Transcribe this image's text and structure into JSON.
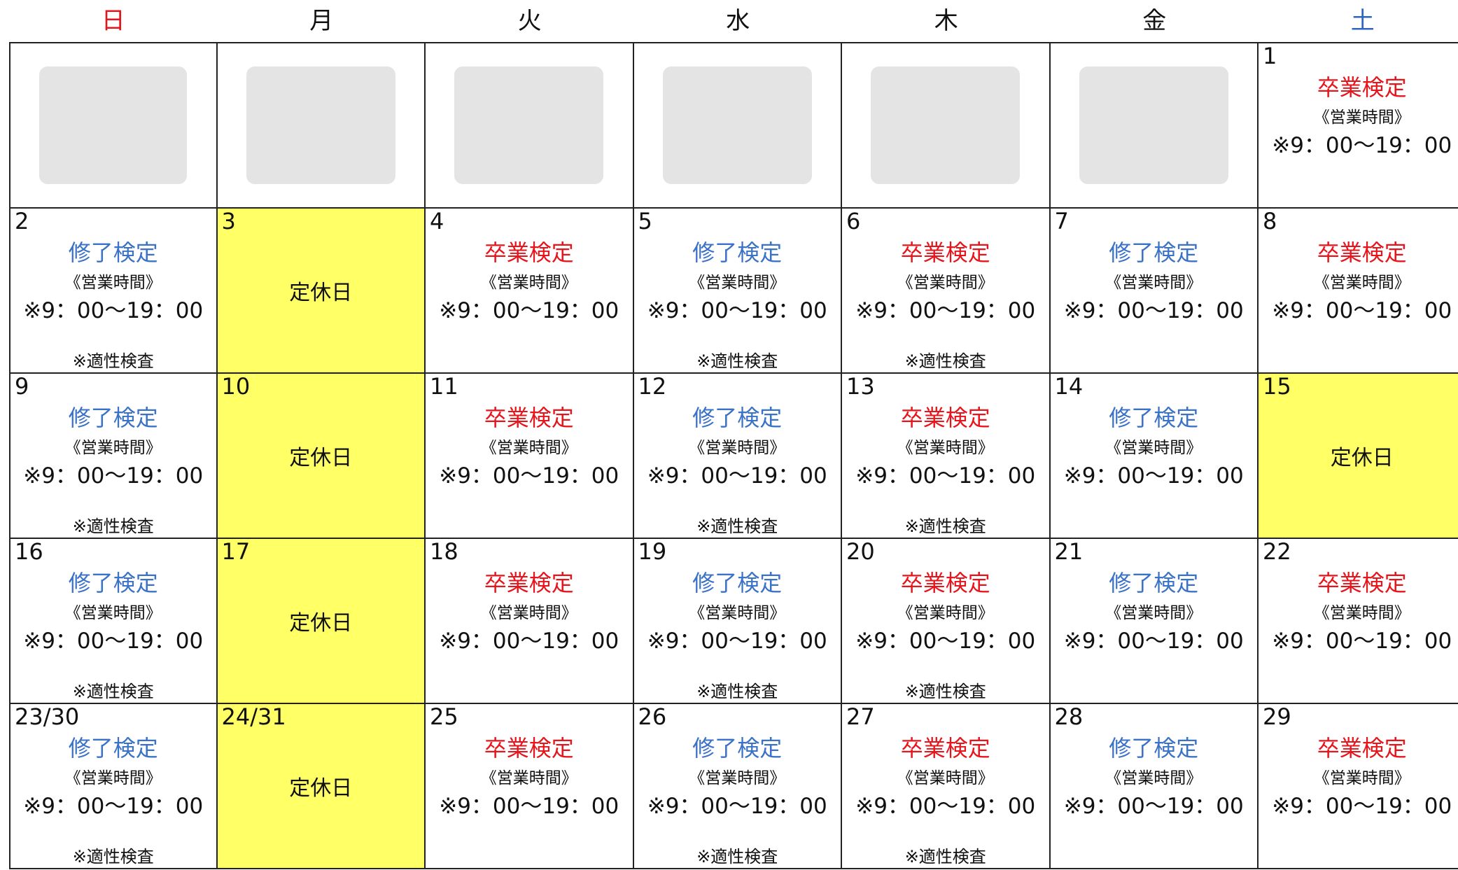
{
  "weekdays": [
    "日",
    "月",
    "火",
    "水",
    "木",
    "金",
    "土"
  ],
  "weekday_colors": [
    "#e8141b",
    "#111111",
    "#111111",
    "#111111",
    "#111111",
    "#111111",
    "#2f64c0"
  ],
  "exam_colors": {
    "修了検定": "#3a72c8",
    "卒業検定": "#e8141b"
  },
  "first_row": {
    "date": "1",
    "exam": "卒業検定",
    "hours_label": "《営業時間》",
    "hours": "※9：00〜19：00"
  },
  "weeks": [
    [
      {
        "date": "2",
        "exam": "修了検定",
        "hours_label": "《営業時間》",
        "hours": "※9：00〜19：00",
        "note": "※適性検査"
      },
      {
        "date": "3",
        "holiday": "定休日"
      },
      {
        "date": "4",
        "exam": "卒業検定",
        "hours_label": "《営業時間》",
        "hours": "※9：00〜19：00"
      },
      {
        "date": "5",
        "exam": "修了検定",
        "hours_label": "《営業時間》",
        "hours": "※9：00〜19：00",
        "note": "※適性検査"
      },
      {
        "date": "6",
        "exam": "卒業検定",
        "hours_label": "《営業時間》",
        "hours": "※9：00〜19：00",
        "note": "※適性検査"
      },
      {
        "date": "7",
        "exam": "修了検定",
        "hours_label": "《営業時間》",
        "hours": "※9：00〜19：00"
      },
      {
        "date": "8",
        "exam": "卒業検定",
        "hours_label": "《営業時間》",
        "hours": "※9：00〜19：00"
      }
    ],
    [
      {
        "date": "9",
        "exam": "修了検定",
        "hours_label": "《営業時間》",
        "hours": "※9：00〜19：00",
        "note": "※適性検査"
      },
      {
        "date": "10",
        "holiday": "定休日"
      },
      {
        "date": "11",
        "exam": "卒業検定",
        "hours_label": "《営業時間》",
        "hours": "※9：00〜19：00"
      },
      {
        "date": "12",
        "exam": "修了検定",
        "hours_label": "《営業時間》",
        "hours": "※9：00〜19：00",
        "note": "※適性検査"
      },
      {
        "date": "13",
        "exam": "卒業検定",
        "hours_label": "《営業時間》",
        "hours": "※9：00〜19：00",
        "note": "※適性検査"
      },
      {
        "date": "14",
        "exam": "修了検定",
        "hours_label": "《営業時間》",
        "hours": "※9：00〜19：00"
      },
      {
        "date": "15",
        "holiday": "定休日"
      }
    ],
    [
      {
        "date": "16",
        "exam": "修了検定",
        "hours_label": "《営業時間》",
        "hours": "※9：00〜19：00",
        "note": "※適性検査"
      },
      {
        "date": "17",
        "holiday": "定休日"
      },
      {
        "date": "18",
        "exam": "卒業検定",
        "hours_label": "《営業時間》",
        "hours": "※9：00〜19：00"
      },
      {
        "date": "19",
        "exam": "修了検定",
        "hours_label": "《営業時間》",
        "hours": "※9：00〜19：00",
        "note": "※適性検査"
      },
      {
        "date": "20",
        "exam": "卒業検定",
        "hours_label": "《営業時間》",
        "hours": "※9：00〜19：00",
        "note": "※適性検査"
      },
      {
        "date": "21",
        "exam": "修了検定",
        "hours_label": "《営業時間》",
        "hours": "※9：00〜19：00"
      },
      {
        "date": "22",
        "exam": "卒業検定",
        "hours_label": "《営業時間》",
        "hours": "※9：00〜19：00"
      }
    ],
    [
      {
        "date": "23/30",
        "exam": "修了検定",
        "hours_label": "《営業時間》",
        "hours": "※9：00〜19：00",
        "note": "※適性検査"
      },
      {
        "date": "24/31",
        "holiday": "定休日"
      },
      {
        "date": "25",
        "exam": "卒業検定",
        "hours_label": "《営業時間》",
        "hours": "※9：00〜19：00"
      },
      {
        "date": "26",
        "exam": "修了検定",
        "hours_label": "《営業時間》",
        "hours": "※9：00〜19：00",
        "note": "※適性検査"
      },
      {
        "date": "27",
        "exam": "卒業検定",
        "hours_label": "《営業時間》",
        "hours": "※9：00〜19：00",
        "note": "※適性検査"
      },
      {
        "date": "28",
        "exam": "修了検定",
        "hours_label": "《営業時間》",
        "hours": "※9：00〜19：00"
      },
      {
        "date": "29",
        "exam": "卒業検定",
        "hours_label": "《営業時間》",
        "hours": "※9：00〜19：00"
      }
    ]
  ]
}
